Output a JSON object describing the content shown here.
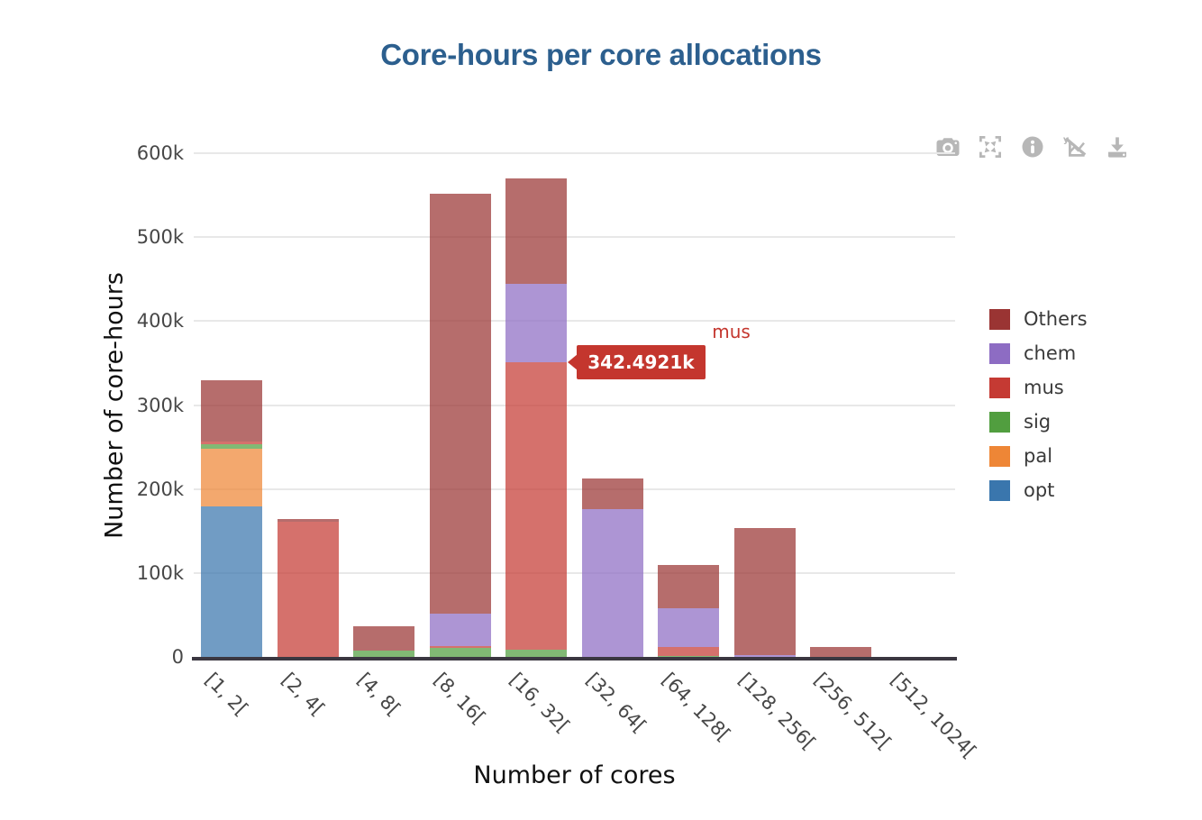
{
  "title": "Core-hours per core allocations",
  "colors": {
    "title": "#2c5f8e",
    "axis_text": "#474747",
    "axis_title": "#111111",
    "grid": "#e8e8e8",
    "baseline": "#3b3741",
    "modebar": "#b7b7b7",
    "legend_text": "#3a3a3a",
    "hover_bg": "#c4362e",
    "hover_text": "#ffffff",
    "background": "#ffffff"
  },
  "modebar": {
    "icons": [
      "camera",
      "expand",
      "info",
      "spikelines",
      "download"
    ]
  },
  "hover": {
    "category": "[16, 32[",
    "series": "mus",
    "value_text": "342.4921k",
    "name_text": "mus"
  },
  "chart_data": {
    "type": "bar",
    "stacked": true,
    "title": "Core-hours per core allocations",
    "xlabel": "Number of cores",
    "ylabel": "Number of core-hours",
    "categories": [
      "[1, 2[",
      "[2, 4[",
      "[4, 8[",
      "[8, 16[",
      "[16, 32[",
      "[32, 64[",
      "[64, 128[",
      "[128, 256[",
      "[256, 512[",
      "[512, 1024["
    ],
    "series": [
      {
        "name": "opt",
        "color": "#3a76ad",
        "values": [
          179000,
          0,
          0,
          0,
          0,
          0,
          0,
          0,
          0,
          0
        ]
      },
      {
        "name": "pal",
        "color": "#ee8636",
        "values": [
          69000,
          0,
          0,
          0,
          0,
          0,
          0,
          0,
          0,
          0
        ]
      },
      {
        "name": "sig",
        "color": "#519e3f",
        "values": [
          5500,
          0,
          8000,
          10500,
          9000,
          0,
          1500,
          0,
          0,
          0
        ]
      },
      {
        "name": "mus",
        "color": "#c53a33",
        "values": [
          2500,
          161500,
          0,
          2500,
          342492.1,
          0,
          10000,
          0,
          0,
          0
        ]
      },
      {
        "name": "chem",
        "color": "#8d6cc3",
        "values": [
          0,
          0,
          0,
          38500,
          92500,
          176000,
          46000,
          2000,
          0,
          0
        ]
      },
      {
        "name": "Others",
        "color": "#9a3433",
        "values": [
          74000,
          3000,
          28000,
          500000,
          126000,
          36500,
          51500,
          151000,
          11500,
          0
        ]
      }
    ],
    "legend_order": [
      "Others",
      "chem",
      "mus",
      "sig",
      "pal",
      "opt"
    ],
    "bar_opacity": 0.72,
    "grid": true,
    "legend_position": "right",
    "ylim": [
      0,
      600000
    ],
    "yticks": [
      {
        "v": 0,
        "label": "0"
      },
      {
        "v": 100000,
        "label": "100k"
      },
      {
        "v": 200000,
        "label": "200k"
      },
      {
        "v": 300000,
        "label": "300k"
      },
      {
        "v": 400000,
        "label": "400k"
      },
      {
        "v": 500000,
        "label": "500k"
      },
      {
        "v": 600000,
        "label": "600k"
      }
    ]
  }
}
